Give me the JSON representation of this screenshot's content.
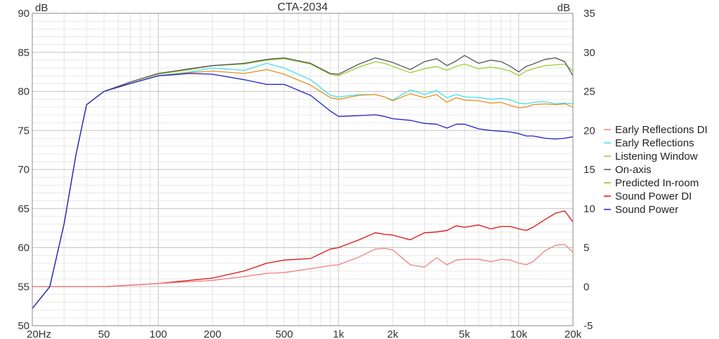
{
  "chart_data": {
    "type": "line",
    "title": "CTA-2034",
    "left_unit": "dB",
    "right_unit": "dB",
    "x_scale": "log",
    "xlim": [
      20,
      20000
    ],
    "ylim_left": [
      50,
      90
    ],
    "ylim_right": [
      -5,
      35
    ],
    "grid": true,
    "legend_placement": "right",
    "x_ticks": [
      {
        "value": 20,
        "label": "20Hz"
      },
      {
        "value": 50,
        "label": "50"
      },
      {
        "value": 100,
        "label": "100"
      },
      {
        "value": 200,
        "label": "200"
      },
      {
        "value": 500,
        "label": "500"
      },
      {
        "value": 1000,
        "label": "1k"
      },
      {
        "value": 2000,
        "label": "2k"
      },
      {
        "value": 5000,
        "label": "5k"
      },
      {
        "value": 10000,
        "label": "10k"
      },
      {
        "value": 20000,
        "label": "20k"
      }
    ],
    "y_left_ticks": [
      {
        "value": 90,
        "label": "90"
      },
      {
        "value": 85,
        "label": "85"
      },
      {
        "value": 80,
        "label": "80"
      },
      {
        "value": 75,
        "label": "75"
      },
      {
        "value": 70,
        "label": "70"
      },
      {
        "value": 65,
        "label": "65"
      },
      {
        "value": 60,
        "label": "60"
      },
      {
        "value": 55,
        "label": "55"
      },
      {
        "value": 50,
        "label": "50"
      }
    ],
    "y_right_ticks": [
      {
        "value": 35,
        "label": "35"
      },
      {
        "value": 30,
        "label": "30"
      },
      {
        "value": 25,
        "label": "25"
      },
      {
        "value": 20,
        "label": "20"
      },
      {
        "value": 15,
        "label": "15"
      },
      {
        "value": 10,
        "label": "10"
      },
      {
        "value": 5,
        "label": "5"
      },
      {
        "value": 0,
        "label": "0"
      },
      {
        "value": -5,
        "label": "-5"
      }
    ],
    "series": [
      {
        "name": "Early Reflections DI",
        "axis": "right",
        "color": "#f08080",
        "x": [
          20,
          50,
          100,
          200,
          300,
          400,
          500,
          700,
          900,
          1000,
          1300,
          1600,
          1800,
          2000,
          2500,
          3000,
          3500,
          4000,
          4500,
          5000,
          6000,
          7000,
          8000,
          9000,
          10000,
          11000,
          12000,
          14000,
          16000,
          18000,
          20000
        ],
        "y": [
          0,
          0,
          0.4,
          0.8,
          1.3,
          1.7,
          1.8,
          2.3,
          2.7,
          2.8,
          3.8,
          4.8,
          4.9,
          4.7,
          2.8,
          2.5,
          3.7,
          2.8,
          3.4,
          3.5,
          3.5,
          3.2,
          3.5,
          3.4,
          3.0,
          2.8,
          3.2,
          4.6,
          5.3,
          5.4,
          4.4
        ]
      },
      {
        "name": "Early Reflections",
        "axis": "left",
        "color": "#40e0f0",
        "x": [
          20,
          25,
          30,
          35,
          40,
          50,
          70,
          100,
          150,
          200,
          300,
          400,
          500,
          700,
          900,
          1000,
          1300,
          1600,
          1800,
          2000,
          2500,
          3000,
          3500,
          4000,
          4500,
          5000,
          6000,
          7000,
          8000,
          9000,
          10000,
          11000,
          12000,
          14000,
          16000,
          18000,
          20000
        ],
        "y": [
          52.2,
          55,
          63,
          72,
          78.3,
          80,
          81,
          82,
          82.5,
          83,
          82.7,
          83.6,
          83,
          81.5,
          79.5,
          79.3,
          79.6,
          79.6,
          79.3,
          78.9,
          80.2,
          79.6,
          80.1,
          79.2,
          79.6,
          79.3,
          79.2,
          79.0,
          79.1,
          78.9,
          78.5,
          78.4,
          78.6,
          78.7,
          78.4,
          78.5,
          78.4
        ]
      },
      {
        "name": "Listening Window",
        "axis": "left",
        "color": "#9acd32",
        "x": [
          20,
          25,
          30,
          35,
          40,
          50,
          70,
          100,
          150,
          200,
          300,
          400,
          500,
          700,
          900,
          1000,
          1300,
          1600,
          1800,
          2000,
          2500,
          3000,
          3500,
          4000,
          4500,
          5000,
          6000,
          7000,
          8000,
          9000,
          10000,
          11000,
          12000,
          14000,
          16000,
          18000,
          20000
        ],
        "y": [
          52.2,
          55,
          63,
          72,
          78.3,
          80,
          81.2,
          82.2,
          82.8,
          83.3,
          83.5,
          84,
          84.2,
          83.5,
          82.2,
          82.0,
          83.1,
          83.8,
          83.6,
          83.2,
          82.4,
          82.9,
          83.2,
          82.7,
          83.2,
          83.5,
          82.9,
          83.1,
          82.9,
          82.6,
          82.0,
          82.6,
          82.9,
          83.3,
          83.4,
          83.5,
          82.6
        ]
      },
      {
        "name": "On-axis",
        "axis": "left",
        "color": "#555555",
        "x": [
          20,
          25,
          30,
          35,
          40,
          50,
          70,
          100,
          150,
          200,
          300,
          400,
          500,
          700,
          900,
          1000,
          1300,
          1600,
          1800,
          2000,
          2500,
          3000,
          3500,
          4000,
          4500,
          5000,
          6000,
          7000,
          8000,
          9000,
          10000,
          11000,
          12000,
          14000,
          16000,
          18000,
          20000
        ],
        "y": [
          52.2,
          55,
          63,
          72,
          78.3,
          80,
          81.2,
          82.3,
          82.9,
          83.3,
          83.6,
          84.1,
          84.3,
          83.6,
          82.3,
          82.2,
          83.5,
          84.3,
          84.0,
          83.7,
          82.8,
          83.8,
          84.2,
          83.3,
          83.9,
          84.6,
          83.6,
          84.0,
          83.8,
          83.2,
          82.5,
          83.2,
          83.5,
          84.1,
          84.3,
          83.8,
          82.0
        ]
      },
      {
        "name": "Predicted In-room",
        "axis": "left",
        "color": "#e8901c",
        "x": [
          20,
          25,
          30,
          35,
          40,
          50,
          70,
          100,
          150,
          200,
          300,
          400,
          500,
          700,
          900,
          1000,
          1300,
          1600,
          1800,
          2000,
          2500,
          3000,
          3500,
          4000,
          4500,
          5000,
          6000,
          7000,
          8000,
          9000,
          10000,
          11000,
          12000,
          14000,
          16000,
          18000,
          20000
        ],
        "y": [
          52.2,
          55,
          63,
          72,
          78.3,
          80,
          81,
          82,
          82.4,
          82.6,
          82.3,
          82.8,
          82.2,
          80.8,
          79.2,
          79.0,
          79.5,
          79.6,
          79.3,
          78.8,
          79.7,
          79.2,
          79.6,
          78.6,
          79.2,
          78.9,
          78.8,
          78.5,
          78.6,
          78.2,
          77.9,
          78.0,
          78.3,
          78.4,
          78.3,
          78.4,
          78.0
        ]
      },
      {
        "name": "Sound Power DI",
        "axis": "right",
        "color": "#dd1111",
        "x": [
          20,
          50,
          100,
          200,
          300,
          400,
          500,
          700,
          900,
          1000,
          1300,
          1600,
          1800,
          2000,
          2500,
          3000,
          3500,
          4000,
          4500,
          5000,
          6000,
          7000,
          8000,
          9000,
          10000,
          11000,
          12000,
          14000,
          16000,
          18000,
          20000
        ],
        "y": [
          0,
          0,
          0.4,
          1.1,
          2.0,
          3.0,
          3.4,
          3.6,
          4.8,
          5.0,
          6.0,
          6.9,
          6.7,
          6.6,
          6.0,
          6.9,
          7.0,
          7.2,
          7.8,
          7.6,
          7.9,
          7.4,
          7.7,
          7.7,
          7.4,
          7.2,
          7.6,
          8.6,
          9.4,
          9.7,
          8.3
        ]
      },
      {
        "name": "Sound Power",
        "axis": "left",
        "color": "#1e24c8",
        "x": [
          20,
          25,
          30,
          35,
          40,
          50,
          70,
          100,
          150,
          200,
          300,
          400,
          500,
          700,
          900,
          1000,
          1300,
          1600,
          1800,
          2000,
          2500,
          3000,
          3500,
          4000,
          4500,
          5000,
          6000,
          7000,
          8000,
          9000,
          10000,
          11000,
          12000,
          14000,
          16000,
          18000,
          20000
        ],
        "y": [
          52.2,
          55,
          63,
          72,
          78.3,
          80,
          81,
          82,
          82.3,
          82.2,
          81.5,
          80.9,
          80.9,
          79.5,
          77.5,
          76.8,
          76.9,
          77.0,
          76.8,
          76.5,
          76.3,
          75.9,
          75.8,
          75.3,
          75.8,
          75.8,
          75.2,
          75.0,
          74.9,
          74.8,
          74.6,
          74.3,
          74.3,
          74.0,
          73.9,
          74.0,
          74.2
        ]
      }
    ]
  }
}
